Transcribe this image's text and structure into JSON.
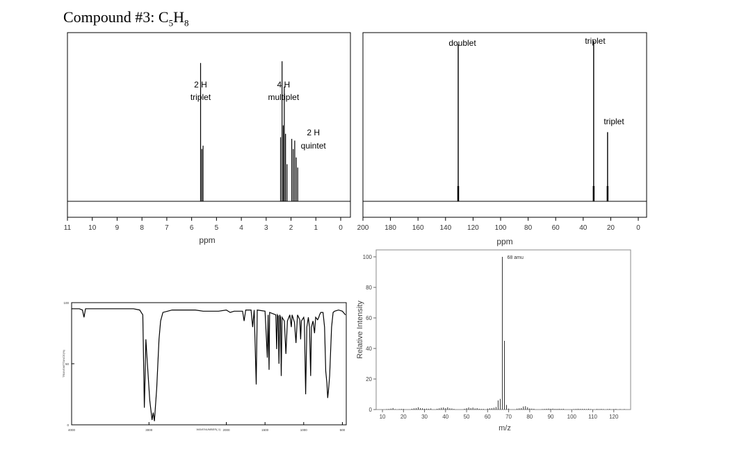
{
  "page": {
    "title_prefix": "Compound #3: C",
    "title_sub1": "5",
    "title_mid": "H",
    "title_sub2": "8"
  },
  "chart_data": [
    {
      "id": "h1nmr",
      "type": "line",
      "xlabel": "ppm",
      "xlim": [
        11,
        0
      ],
      "x_ticks": [
        11,
        10,
        9,
        8,
        7,
        6,
        5,
        4,
        3,
        2,
        1,
        0
      ],
      "peaks": [
        {
          "x": 5.64,
          "y": 0.82
        },
        {
          "x": 5.59,
          "y": 0.31
        },
        {
          "x": 5.54,
          "y": 0.33
        },
        {
          "x": 2.42,
          "y": 0.38
        },
        {
          "x": 2.36,
          "y": 0.83
        },
        {
          "x": 2.31,
          "y": 0.45
        },
        {
          "x": 2.27,
          "y": 0.68
        },
        {
          "x": 2.22,
          "y": 0.4
        },
        {
          "x": 2.16,
          "y": 0.22
        },
        {
          "x": 1.97,
          "y": 0.37
        },
        {
          "x": 1.91,
          "y": 0.31
        },
        {
          "x": 1.85,
          "y": 0.36
        },
        {
          "x": 1.79,
          "y": 0.26
        },
        {
          "x": 1.73,
          "y": 0.2
        }
      ],
      "annotations": [
        {
          "lines": [
            "2 H",
            "triplet"
          ],
          "x": 5.64
        },
        {
          "lines": [
            "4 H",
            "multiplet"
          ],
          "x": 2.3
        },
        {
          "lines": [
            "2 H",
            "quintet"
          ],
          "x": 1.1
        }
      ]
    },
    {
      "id": "c13nmr",
      "type": "line",
      "xlabel": "ppm",
      "xlim": [
        200,
        0
      ],
      "x_ticks": [
        200,
        180,
        160,
        140,
        120,
        100,
        80,
        60,
        40,
        20,
        0
      ],
      "peaks": [
        {
          "x": 130.8,
          "y": 0.93,
          "label": "doublet"
        },
        {
          "x": 32.4,
          "y": 0.95,
          "label": "triplet"
        },
        {
          "x": 22.3,
          "y": 0.41,
          "label": "triplet"
        }
      ]
    },
    {
      "id": "ir",
      "type": "line",
      "x_ticks": [
        4000,
        3000,
        2000,
        1500,
        1000,
        500
      ],
      "xlim": [
        4000,
        450
      ],
      "y_ticks": [
        100,
        50,
        0
      ],
      "ylim": [
        0,
        100
      ],
      "xlabel": "WAVENUMBER(-1)",
      "ylabel": "TRANSMITTANCE(%)",
      "spectrum": [
        [
          4000,
          95
        ],
        [
          3900,
          95
        ],
        [
          3860,
          94
        ],
        [
          3840,
          88
        ],
        [
          3820,
          95
        ],
        [
          3400,
          95
        ],
        [
          3200,
          95
        ],
        [
          3120,
          94
        ],
        [
          3080,
          90
        ],
        [
          3060,
          14
        ],
        [
          3050,
          40
        ],
        [
          3040,
          70
        ],
        [
          3020,
          50
        ],
        [
          2990,
          20
        ],
        [
          2960,
          4
        ],
        [
          2945,
          10
        ],
        [
          2930,
          3
        ],
        [
          2900,
          30
        ],
        [
          2870,
          70
        ],
        [
          2850,
          85
        ],
        [
          2820,
          92
        ],
        [
          2700,
          94
        ],
        [
          2400,
          94
        ],
        [
          2300,
          93
        ],
        [
          2100,
          93
        ],
        [
          2000,
          94
        ],
        [
          1950,
          92
        ],
        [
          1900,
          93
        ],
        [
          1790,
          93
        ],
        [
          1770,
          85
        ],
        [
          1750,
          94
        ],
        [
          1680,
          94
        ],
        [
          1660,
          80
        ],
        [
          1640,
          94
        ],
        [
          1614,
          33
        ],
        [
          1600,
          94
        ],
        [
          1500,
          93
        ],
        [
          1470,
          55
        ],
        [
          1460,
          90
        ],
        [
          1448,
          45
        ],
        [
          1440,
          92
        ],
        [
          1360,
          90
        ],
        [
          1350,
          62
        ],
        [
          1340,
          90
        ],
        [
          1330,
          89
        ],
        [
          1320,
          50
        ],
        [
          1310,
          90
        ],
        [
          1300,
          88
        ],
        [
          1290,
          40
        ],
        [
          1280,
          88
        ],
        [
          1250,
          85
        ],
        [
          1230,
          58
        ],
        [
          1210,
          85
        ],
        [
          1180,
          90
        ],
        [
          1160,
          80
        ],
        [
          1150,
          90
        ],
        [
          1120,
          84
        ],
        [
          1100,
          67
        ],
        [
          1080,
          90
        ],
        [
          1050,
          86
        ],
        [
          1040,
          70
        ],
        [
          1030,
          85
        ],
        [
          1000,
          88
        ],
        [
          992,
          85
        ],
        [
          975,
          25
        ],
        [
          960,
          80
        ],
        [
          940,
          88
        ],
        [
          925,
          80
        ],
        [
          910,
          40
        ],
        [
          900,
          80
        ],
        [
          880,
          85
        ],
        [
          860,
          75
        ],
        [
          845,
          88
        ],
        [
          820,
          86
        ],
        [
          805,
          88
        ],
        [
          795,
          90
        ],
        [
          780,
          92
        ],
        [
          750,
          92
        ],
        [
          730,
          80
        ],
        [
          715,
          44
        ],
        [
          700,
          34
        ],
        [
          690,
          22
        ],
        [
          680,
          28
        ],
        [
          665,
          40
        ],
        [
          640,
          80
        ],
        [
          620,
          92
        ],
        [
          600,
          93
        ],
        [
          550,
          94
        ],
        [
          500,
          93
        ],
        [
          460,
          90
        ]
      ]
    },
    {
      "id": "ms",
      "type": "bar",
      "xlabel": "m/z",
      "ylabel": "Relative Intensity",
      "xlim": [
        7,
        128
      ],
      "ylim": [
        0,
        100
      ],
      "x_ticks": [
        10,
        20,
        30,
        40,
        50,
        60,
        70,
        80,
        90,
        100,
        110,
        120
      ],
      "y_ticks": [
        0,
        20,
        40,
        60,
        80,
        100
      ],
      "annotation": {
        "text": "68 amu",
        "x": 68
      },
      "bars": [
        [
          12,
          0.3
        ],
        [
          13,
          0.4
        ],
        [
          14,
          0.6
        ],
        [
          15,
          1
        ],
        [
          16,
          0.3
        ],
        [
          18,
          0.3
        ],
        [
          19,
          0.4
        ],
        [
          20,
          0.4
        ],
        [
          24,
          0.5
        ],
        [
          25,
          0.8
        ],
        [
          26,
          1.0
        ],
        [
          27,
          1.5
        ],
        [
          28,
          0.9
        ],
        [
          29,
          0.8
        ],
        [
          30,
          0.5
        ],
        [
          31,
          0.6
        ],
        [
          32,
          0.5
        ],
        [
          33,
          0.7
        ],
        [
          36,
          0.5
        ],
        [
          37,
          0.8
        ],
        [
          38,
          1.2
        ],
        [
          39,
          1.4
        ],
        [
          40,
          0.9
        ],
        [
          41,
          1.5
        ],
        [
          42,
          0.8
        ],
        [
          43,
          0.7
        ],
        [
          44,
          0.4
        ],
        [
          49,
          0.5
        ],
        [
          50,
          0.9
        ],
        [
          51,
          1.4
        ],
        [
          52,
          0.9
        ],
        [
          53,
          1.3
        ],
        [
          54,
          0.7
        ],
        [
          55,
          0.9
        ],
        [
          56,
          0.5
        ],
        [
          57,
          0.4
        ],
        [
          58,
          0.4
        ],
        [
          60,
          0.6
        ],
        [
          61,
          0.8
        ],
        [
          62,
          0.9
        ],
        [
          63,
          1.2
        ],
        [
          64,
          1.7
        ],
        [
          65,
          6
        ],
        [
          66,
          7
        ],
        [
          67,
          100
        ],
        [
          68,
          45
        ],
        [
          69,
          3
        ],
        [
          70,
          0.6
        ],
        [
          74,
          0.6
        ],
        [
          75,
          0.8
        ],
        [
          76,
          1
        ],
        [
          77,
          2
        ],
        [
          78,
          2.2
        ],
        [
          79,
          1.5
        ],
        [
          80,
          0.7
        ],
        [
          81,
          0.6
        ],
        [
          82,
          0.5
        ],
        [
          86,
          0.3
        ],
        [
          87,
          0.4
        ],
        [
          88,
          0.5
        ],
        [
          89,
          0.6
        ],
        [
          90,
          0.5
        ],
        [
          91,
          0.6
        ],
        [
          92,
          0.4
        ],
        [
          93,
          0.4
        ],
        [
          94,
          0.5
        ],
        [
          95,
          0.4
        ],
        [
          96,
          0.5
        ],
        [
          101,
          0.3
        ],
        [
          102,
          0.4
        ],
        [
          103,
          0.5
        ],
        [
          104,
          0.4
        ],
        [
          105,
          0.4
        ],
        [
          106,
          0.4
        ],
        [
          107,
          0.3
        ],
        [
          108,
          0.5
        ],
        [
          109,
          0.3
        ],
        [
          112,
          0.4
        ],
        [
          113,
          0.3
        ],
        [
          114,
          0.4
        ],
        [
          115,
          0.3
        ],
        [
          117,
          0.3
        ],
        [
          118,
          0.4
        ],
        [
          120,
          0.3
        ],
        [
          121,
          0.4
        ],
        [
          123,
          0.3
        ],
        [
          125,
          0.3
        ]
      ]
    }
  ]
}
